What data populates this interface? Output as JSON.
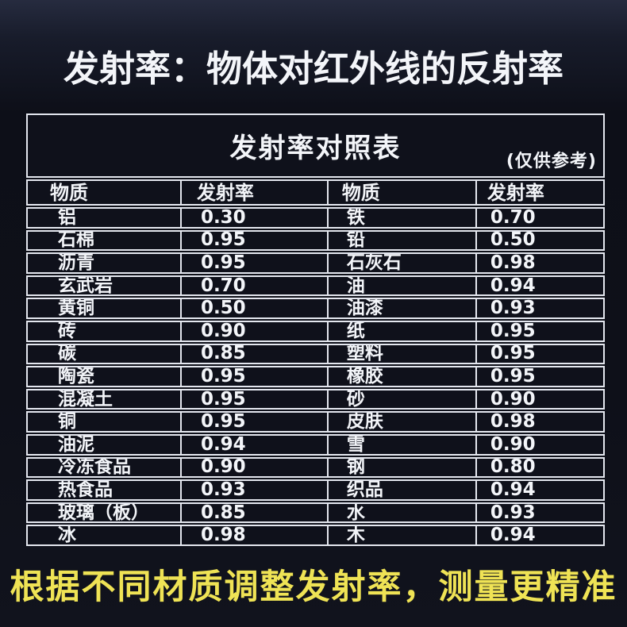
{
  "page": {
    "title": "发射率：物体对红外线的反射率",
    "footer": "根据不同材质调整发射率，测量更精准"
  },
  "table": {
    "title": "发射率对照表",
    "note": "(仅供参考)",
    "columns": [
      "物质",
      "发射率",
      "物质",
      "发射率"
    ],
    "rows": [
      [
        "铝",
        "0.30",
        "铁",
        "0.70"
      ],
      [
        "石棉",
        "0.95",
        "铅",
        "0.50"
      ],
      [
        "沥青",
        "0.95",
        "石灰石",
        "0.98"
      ],
      [
        "玄武岩",
        "0.70",
        "油",
        "0.94"
      ],
      [
        "黄铜",
        "0.50",
        "油漆",
        "0.93"
      ],
      [
        "砖",
        "0.90",
        "纸",
        "0.95"
      ],
      [
        "碳",
        "0.85",
        "塑料",
        "0.95"
      ],
      [
        "陶瓷",
        "0.95",
        "橡胶",
        "0.95"
      ],
      [
        "混凝土",
        "0.95",
        "砂",
        "0.90"
      ],
      [
        "铜",
        "0.95",
        "皮肤",
        "0.98"
      ],
      [
        "油泥",
        "0.94",
        "雪",
        "0.90"
      ],
      [
        "冷冻食品",
        "0.90",
        "钢",
        "0.80"
      ],
      [
        "热食品",
        "0.93",
        "织品",
        "0.94"
      ],
      [
        "玻璃（板）",
        "0.85",
        "水",
        "0.93"
      ],
      [
        "冰",
        "0.98",
        "木",
        "0.94"
      ]
    ]
  },
  "colors": {
    "background_top": "#262b3f",
    "background": "#0e1019",
    "table_line": "#e4e7ef",
    "text": "#f3f5f9",
    "slogan_yellow": "#efe355"
  }
}
